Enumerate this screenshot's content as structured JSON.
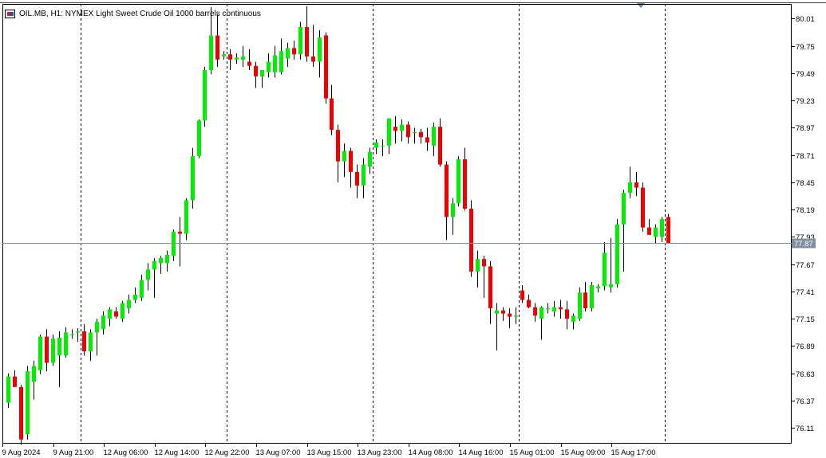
{
  "header": {
    "title": "OIL.MB, H1:  NYMEX Light Sweet Crude Oil 1000 barrels continuous"
  },
  "price_label": "77.87",
  "colors": {
    "bull": "#00ee00",
    "bear": "#ee0000",
    "grid": "#000000",
    "price_line": "#8090a0",
    "price_label_bg": "#8090a0"
  },
  "chart_data": {
    "type": "candlestick",
    "symbol": "OIL.MB",
    "timeframe": "H1",
    "ylim": [
      75.96,
      80.15
    ],
    "y_ticks": [
      "80.01",
      "79.75",
      "79.49",
      "79.23",
      "78.97",
      "78.71",
      "78.45",
      "78.19",
      "77.93",
      "77.67",
      "77.41",
      "77.15",
      "76.89",
      "76.63",
      "76.37",
      "76.11"
    ],
    "x_ticks": [
      "9 Aug 2024",
      "9 Aug 21:00",
      "12 Aug 06:00",
      "12 Aug 14:00",
      "12 Aug 22:00",
      "13 Aug 07:00",
      "13 Aug 15:00",
      "13 Aug 23:00",
      "14 Aug 08:00",
      "14 Aug 16:00",
      "15 Aug 01:00",
      "15 Aug 09:00",
      "15 Aug 17:00"
    ],
    "x_tick_bars": [
      0,
      8,
      16,
      24,
      32,
      40,
      48,
      56,
      64,
      72,
      80,
      88,
      96
    ],
    "separators_after_bar": [
      11,
      34,
      57,
      80,
      103
    ],
    "last_price": 77.87,
    "candles": [
      {
        "o": 76.35,
        "h": 76.63,
        "l": 76.3,
        "c": 76.6
      },
      {
        "o": 76.6,
        "h": 76.66,
        "l": 76.5,
        "c": 76.5
      },
      {
        "o": 76.5,
        "h": 76.52,
        "l": 75.95,
        "c": 76.0
      },
      {
        "o": 76.05,
        "h": 76.7,
        "l": 76.0,
        "c": 76.65
      },
      {
        "o": 76.55,
        "h": 76.75,
        "l": 76.38,
        "c": 76.7
      },
      {
        "o": 76.66,
        "h": 77.0,
        "l": 76.62,
        "c": 76.98
      },
      {
        "o": 76.98,
        "h": 77.05,
        "l": 76.65,
        "c": 76.73
      },
      {
        "o": 76.73,
        "h": 77.0,
        "l": 76.7,
        "c": 76.96
      },
      {
        "o": 76.8,
        "h": 77.03,
        "l": 76.5,
        "c": 76.97
      },
      {
        "o": 76.8,
        "h": 77.07,
        "l": 76.78,
        "c": 77.02
      },
      {
        "o": 77.0,
        "h": 77.05,
        "l": 76.96,
        "c": 77.0
      },
      {
        "o": 77.02,
        "h": 77.06,
        "l": 76.93,
        "c": 77.03
      },
      {
        "o": 77.03,
        "h": 77.1,
        "l": 76.8,
        "c": 76.84
      },
      {
        "o": 76.84,
        "h": 77.05,
        "l": 76.75,
        "c": 77.02
      },
      {
        "o": 77.02,
        "h": 77.15,
        "l": 76.8,
        "c": 77.12
      },
      {
        "o": 77.05,
        "h": 77.22,
        "l": 77.0,
        "c": 77.18
      },
      {
        "o": 77.15,
        "h": 77.26,
        "l": 77.08,
        "c": 77.24
      },
      {
        "o": 77.22,
        "h": 77.26,
        "l": 77.15,
        "c": 77.17
      },
      {
        "o": 77.15,
        "h": 77.32,
        "l": 77.12,
        "c": 77.3
      },
      {
        "o": 77.25,
        "h": 77.38,
        "l": 77.2,
        "c": 77.33
      },
      {
        "o": 77.33,
        "h": 77.45,
        "l": 77.3,
        "c": 77.38
      },
      {
        "o": 77.35,
        "h": 77.57,
        "l": 77.32,
        "c": 77.52
      },
      {
        "o": 77.52,
        "h": 77.68,
        "l": 77.42,
        "c": 77.62
      },
      {
        "o": 77.62,
        "h": 77.73,
        "l": 77.35,
        "c": 77.7
      },
      {
        "o": 77.68,
        "h": 77.75,
        "l": 77.58,
        "c": 77.73
      },
      {
        "o": 77.68,
        "h": 77.8,
        "l": 77.6,
        "c": 77.76
      },
      {
        "o": 77.75,
        "h": 78.0,
        "l": 77.7,
        "c": 77.98
      },
      {
        "o": 77.98,
        "h": 78.12,
        "l": 77.65,
        "c": 77.96
      },
      {
        "o": 77.96,
        "h": 78.3,
        "l": 77.9,
        "c": 78.28
      },
      {
        "o": 78.28,
        "h": 78.78,
        "l": 78.2,
        "c": 78.7
      },
      {
        "o": 78.7,
        "h": 79.05,
        "l": 78.68,
        "c": 79.04
      },
      {
        "o": 79.04,
        "h": 79.55,
        "l": 78.98,
        "c": 79.52
      },
      {
        "o": 79.52,
        "h": 80.12,
        "l": 79.48,
        "c": 79.85
      },
      {
        "o": 79.85,
        "h": 80.05,
        "l": 79.55,
        "c": 79.62
      },
      {
        "o": 79.65,
        "h": 79.7,
        "l": 79.62,
        "c": 79.67
      },
      {
        "o": 79.67,
        "h": 79.72,
        "l": 79.52,
        "c": 79.62
      },
      {
        "o": 79.62,
        "h": 79.68,
        "l": 79.58,
        "c": 79.64
      },
      {
        "o": 79.62,
        "h": 79.75,
        "l": 79.55,
        "c": 79.65
      },
      {
        "o": 79.6,
        "h": 79.72,
        "l": 79.52,
        "c": 79.56
      },
      {
        "o": 79.56,
        "h": 79.6,
        "l": 79.35,
        "c": 79.46
      },
      {
        "o": 79.46,
        "h": 79.52,
        "l": 79.35,
        "c": 79.52
      },
      {
        "o": 79.5,
        "h": 79.68,
        "l": 79.45,
        "c": 79.6
      },
      {
        "o": 79.5,
        "h": 79.75,
        "l": 79.45,
        "c": 79.66
      },
      {
        "o": 79.5,
        "h": 79.82,
        "l": 79.48,
        "c": 79.7
      },
      {
        "o": 79.63,
        "h": 79.78,
        "l": 79.55,
        "c": 79.73
      },
      {
        "o": 79.73,
        "h": 79.8,
        "l": 79.62,
        "c": 79.67
      },
      {
        "o": 79.67,
        "h": 79.98,
        "l": 79.62,
        "c": 79.93
      },
      {
        "o": 79.93,
        "h": 80.13,
        "l": 79.6,
        "c": 79.65
      },
      {
        "o": 79.65,
        "h": 79.95,
        "l": 79.55,
        "c": 79.6
      },
      {
        "o": 79.6,
        "h": 79.9,
        "l": 79.45,
        "c": 79.83
      },
      {
        "o": 79.85,
        "h": 79.88,
        "l": 79.2,
        "c": 79.25
      },
      {
        "o": 79.25,
        "h": 79.38,
        "l": 78.9,
        "c": 78.95
      },
      {
        "o": 78.95,
        "h": 79.0,
        "l": 78.45,
        "c": 78.65
      },
      {
        "o": 78.65,
        "h": 78.82,
        "l": 78.5,
        "c": 78.75
      },
      {
        "o": 78.75,
        "h": 78.78,
        "l": 78.4,
        "c": 78.55
      },
      {
        "o": 78.55,
        "h": 78.62,
        "l": 78.3,
        "c": 78.42
      },
      {
        "o": 78.42,
        "h": 78.68,
        "l": 78.3,
        "c": 78.62
      },
      {
        "o": 78.6,
        "h": 78.78,
        "l": 78.53,
        "c": 78.74
      },
      {
        "o": 78.78,
        "h": 78.86,
        "l": 78.72,
        "c": 78.83
      },
      {
        "o": 78.8,
        "h": 78.86,
        "l": 78.7,
        "c": 78.8
      },
      {
        "o": 78.8,
        "h": 79.02,
        "l": 78.72,
        "c": 79.06
      },
      {
        "o": 78.98,
        "h": 79.08,
        "l": 78.82,
        "c": 78.94
      },
      {
        "o": 78.94,
        "h": 79.05,
        "l": 78.84,
        "c": 79.0
      },
      {
        "o": 79.0,
        "h": 79.03,
        "l": 78.82,
        "c": 78.88
      },
      {
        "o": 78.92,
        "h": 78.97,
        "l": 78.82,
        "c": 78.93
      },
      {
        "o": 78.93,
        "h": 78.96,
        "l": 78.82,
        "c": 78.88
      },
      {
        "o": 78.88,
        "h": 78.97,
        "l": 78.75,
        "c": 78.83
      },
      {
        "o": 78.8,
        "h": 79.02,
        "l": 78.7,
        "c": 78.98
      },
      {
        "o": 78.98,
        "h": 79.06,
        "l": 78.6,
        "c": 78.62
      },
      {
        "o": 78.62,
        "h": 78.65,
        "l": 77.9,
        "c": 78.12
      },
      {
        "o": 78.12,
        "h": 78.3,
        "l": 77.95,
        "c": 78.25
      },
      {
        "o": 78.25,
        "h": 78.7,
        "l": 78.22,
        "c": 78.67
      },
      {
        "o": 78.67,
        "h": 78.78,
        "l": 78.18,
        "c": 78.2
      },
      {
        "o": 78.2,
        "h": 78.28,
        "l": 77.55,
        "c": 77.6
      },
      {
        "o": 77.6,
        "h": 77.8,
        "l": 77.45,
        "c": 77.72
      },
      {
        "o": 77.72,
        "h": 77.75,
        "l": 77.35,
        "c": 77.65
      },
      {
        "o": 77.65,
        "h": 77.7,
        "l": 77.1,
        "c": 77.25
      },
      {
        "o": 77.2,
        "h": 77.3,
        "l": 76.85,
        "c": 77.23
      },
      {
        "o": 77.23,
        "h": 77.26,
        "l": 77.13,
        "c": 77.2
      },
      {
        "o": 77.2,
        "h": 77.25,
        "l": 77.06,
        "c": 77.17
      },
      {
        "o": 77.17,
        "h": 77.26,
        "l": 77.1,
        "c": 77.18
      },
      {
        "o": 77.42,
        "h": 77.47,
        "l": 77.3,
        "c": 77.33
      },
      {
        "o": 77.33,
        "h": 77.38,
        "l": 77.25,
        "c": 77.26
      },
      {
        "o": 77.26,
        "h": 77.3,
        "l": 77.12,
        "c": 77.18
      },
      {
        "o": 77.15,
        "h": 77.27,
        "l": 76.95,
        "c": 77.26
      },
      {
        "o": 77.24,
        "h": 77.3,
        "l": 77.2,
        "c": 77.25
      },
      {
        "o": 77.22,
        "h": 77.32,
        "l": 77.17,
        "c": 77.26
      },
      {
        "o": 77.26,
        "h": 77.33,
        "l": 77.15,
        "c": 77.24
      },
      {
        "o": 77.24,
        "h": 77.32,
        "l": 77.05,
        "c": 77.15
      },
      {
        "o": 77.12,
        "h": 77.2,
        "l": 77.05,
        "c": 77.18
      },
      {
        "o": 77.15,
        "h": 77.45,
        "l": 77.13,
        "c": 77.4
      },
      {
        "o": 77.4,
        "h": 77.5,
        "l": 77.22,
        "c": 77.25
      },
      {
        "o": 77.25,
        "h": 77.5,
        "l": 77.22,
        "c": 77.47
      },
      {
        "o": 77.44,
        "h": 77.48,
        "l": 77.4,
        "c": 77.46
      },
      {
        "o": 77.46,
        "h": 77.88,
        "l": 77.42,
        "c": 77.78
      },
      {
        "o": 77.45,
        "h": 77.92,
        "l": 77.4,
        "c": 77.48
      },
      {
        "o": 77.48,
        "h": 78.1,
        "l": 77.45,
        "c": 78.05
      },
      {
        "o": 78.05,
        "h": 78.38,
        "l": 77.6,
        "c": 78.35
      },
      {
        "o": 78.35,
        "h": 78.6,
        "l": 78.3,
        "c": 78.45
      },
      {
        "o": 78.45,
        "h": 78.55,
        "l": 78.32,
        "c": 78.4
      },
      {
        "o": 78.4,
        "h": 78.45,
        "l": 77.98,
        "c": 78.02
      },
      {
        "o": 78.02,
        "h": 78.1,
        "l": 77.95,
        "c": 77.95
      },
      {
        "o": 77.93,
        "h": 78.05,
        "l": 77.87,
        "c": 78.02
      },
      {
        "o": 77.93,
        "h": 78.12,
        "l": 77.88,
        "c": 78.1
      },
      {
        "o": 78.12,
        "h": 78.15,
        "l": 77.87,
        "c": 77.87
      }
    ]
  }
}
